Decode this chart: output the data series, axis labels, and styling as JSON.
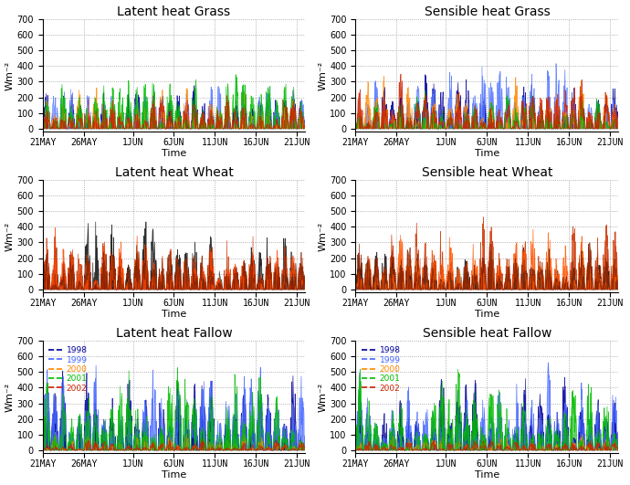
{
  "titles": [
    [
      "Latent heat Grass",
      "Sensible heat Grass"
    ],
    [
      "Latent heat Wheat",
      "Sensible heat Wheat"
    ],
    [
      "Latent heat Fallow",
      "Sensible heat Fallow"
    ]
  ],
  "ylabel": "Wm⁻²",
  "xlabel": "Time",
  "ylim": [
    -20,
    700
  ],
  "yticks": [
    0,
    100,
    200,
    300,
    400,
    500,
    600,
    700
  ],
  "x_tick_labels": [
    "21MAY",
    "26MAY",
    "1JUN",
    "6JUN",
    "11JUN",
    "16JUN",
    "21JUN"
  ],
  "x_tick_days": [
    0,
    5,
    11,
    16,
    21,
    26,
    31
  ],
  "background_color": "#ffffff",
  "grid_color": "#999999",
  "title_fontsize": 10,
  "label_fontsize": 8,
  "tick_fontsize": 7,
  "grass_latent_colors": {
    "1998": "#000099",
    "1999": "#5577ff",
    "2000": "#ff8800",
    "2001": "#00bb00",
    "2002": "#cc2200"
  },
  "grass_sensible_colors": {
    "1998": "#000099",
    "1999": "#5577ff",
    "2000": "#ff8800",
    "2001": "#00bb00",
    "2002": "#cc2200"
  },
  "wheat_latent_colors": {
    "1998": "#111111",
    "1999": "#444444",
    "2000": "#cc3300",
    "2001": "#ff4400",
    "2002": "#882200"
  },
  "wheat_sensible_colors": {
    "1998": "#111111",
    "1999": "#444444",
    "2000": "#cc3300",
    "2001": "#ff5500",
    "2002": "#882200"
  },
  "fallow_colors": {
    "1998": "#000099",
    "1999": "#4466ff",
    "2000": "#ff8800",
    "2001": "#00bb00",
    "2002": "#cc2200"
  },
  "legend_years": [
    "1998",
    "1999",
    "2000",
    "2001",
    "2002"
  ]
}
